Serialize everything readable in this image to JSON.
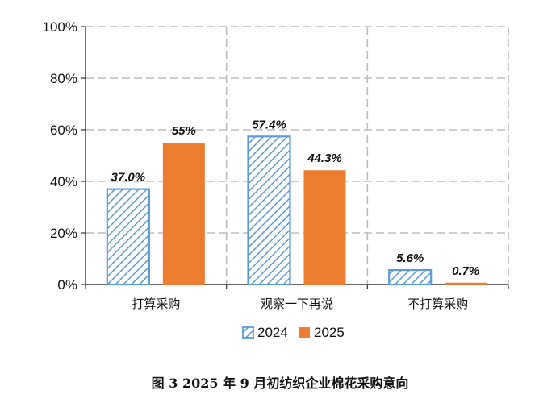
{
  "caption": "图 3   2025 年 9 月初纺织企业棉花采购意向",
  "chart_data": {
    "type": "bar",
    "categories": [
      "打算采购",
      "观察一下再说",
      "不打算采购"
    ],
    "series": [
      {
        "name": "2024",
        "values": [
          37.0,
          57.4,
          5.6
        ],
        "labels": [
          "37.0%",
          "57.4%",
          "5.6%"
        ],
        "color": "#5b9bd5",
        "pattern": "diagonal-hatch"
      },
      {
        "name": "2025",
        "values": [
          55,
          44.3,
          0.7
        ],
        "labels": [
          "55%",
          "44.3%",
          "0.7%"
        ],
        "color": "#ed7d31",
        "pattern": "solid"
      }
    ],
    "yticks": [
      "0%",
      "20%",
      "40%",
      "60%",
      "80%",
      "100%"
    ],
    "ylim": [
      0,
      100
    ],
    "grid": true,
    "legend": "bottom",
    "title": "",
    "xlabel": "",
    "ylabel": ""
  }
}
